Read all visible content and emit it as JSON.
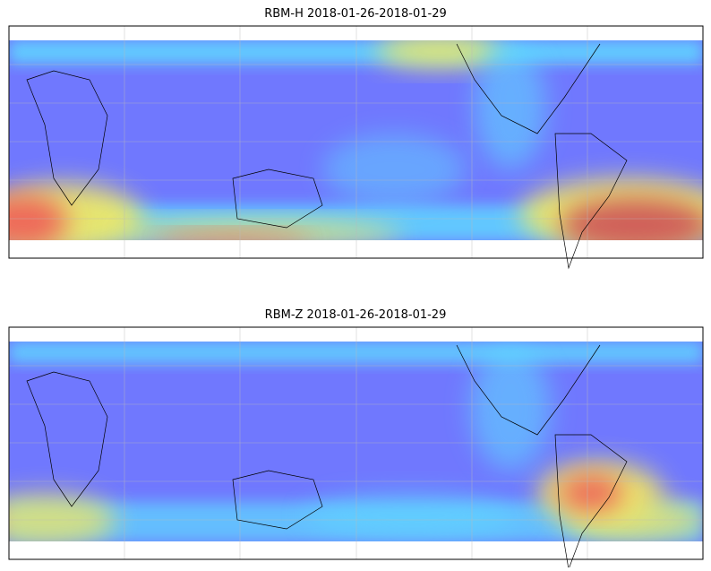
{
  "panels": [
    {
      "title": "RBM-H 2018-01-26-2018-01-29"
    },
    {
      "title": "RBM-Z 2018-01-26-2018-01-29"
    }
  ]
}
